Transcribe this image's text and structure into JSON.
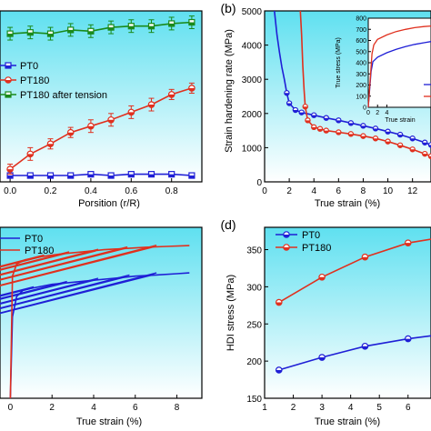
{
  "chart_data": [
    {
      "panel": "a",
      "type": "line",
      "panel_label": "",
      "xlabel": "Porsition (r/R)",
      "ylabel": "",
      "xlim": [
        -0.05,
        0.95
      ],
      "xticks": [
        0.0,
        0.2,
        0.4,
        0.6,
        0.8
      ],
      "xticklabels": [
        "0.0",
        "0.2",
        "0.4",
        "0.6",
        "0.8"
      ],
      "series": [
        {
          "name": "PT0",
          "color": "#1f1fd6",
          "marker": "square-half",
          "x": [
            0.0,
            0.1,
            0.2,
            0.3,
            0.4,
            0.5,
            0.6,
            0.7,
            0.8,
            0.9
          ],
          "y": [
            0.5,
            0.5,
            0.5,
            0.5,
            0.6,
            0.5,
            0.6,
            0.6,
            0.6,
            0.5
          ],
          "err": [
            0.2,
            0.2,
            0.2,
            0.2,
            0.2,
            0.2,
            0.2,
            0.2,
            0.2,
            0.2
          ]
        },
        {
          "name": "PT180",
          "color": "#e0301e",
          "marker": "circle-half",
          "x": [
            0.0,
            0.1,
            0.2,
            0.3,
            0.4,
            0.5,
            0.6,
            0.7,
            0.8,
            0.9
          ],
          "y": [
            1.0,
            2.2,
            3.0,
            3.9,
            4.4,
            4.9,
            5.5,
            6.1,
            6.9,
            7.4
          ],
          "err": [
            0.4,
            0.5,
            0.4,
            0.4,
            0.5,
            0.5,
            0.5,
            0.5,
            0.4,
            0.4
          ]
        },
        {
          "name": "PT180 after tension",
          "color": "#1a8a1a",
          "marker": "square-half",
          "x": [
            0.0,
            0.1,
            0.2,
            0.3,
            0.4,
            0.5,
            0.6,
            0.7,
            0.8,
            0.9
          ],
          "y": [
            11.7,
            11.8,
            11.7,
            12.0,
            11.9,
            12.2,
            12.3,
            12.3,
            12.5,
            12.6
          ],
          "err": [
            0.5,
            0.5,
            0.5,
            0.5,
            0.5,
            0.5,
            0.5,
            0.5,
            0.5,
            0.5
          ]
        }
      ],
      "ylim": [
        0,
        13.5
      ],
      "legend": "left"
    },
    {
      "panel": "b",
      "type": "line",
      "panel_label": "(b)",
      "xlabel": "True strain (%)",
      "ylabel": "Strain hardening rate (MPa)",
      "xlim": [
        0,
        13.5
      ],
      "ylim": [
        0,
        5000
      ],
      "xticks": [
        0,
        2,
        4,
        6,
        8,
        10,
        12
      ],
      "yticks": [
        0,
        1000,
        2000,
        3000,
        4000,
        5000
      ],
      "series": [
        {
          "name": "PT0",
          "color": "#1f1fd6",
          "x": [
            0.8,
            1.0,
            1.2,
            1.4,
            1.6,
            1.8,
            2.0,
            2.5,
            3.0,
            4.0,
            5.0,
            6.0,
            7.0,
            8.0,
            9.0,
            10.0,
            11.0,
            12.0,
            13.0,
            13.5
          ],
          "y": [
            5000,
            4300,
            3800,
            3350,
            3000,
            2600,
            2300,
            2100,
            2030,
            1950,
            1870,
            1800,
            1720,
            1640,
            1560,
            1470,
            1380,
            1270,
            1150,
            1080
          ]
        },
        {
          "name": "PT180",
          "color": "#e0301e",
          "x": [
            2.9,
            3.0,
            3.1,
            3.2,
            3.3,
            3.5,
            4.0,
            4.5,
            5.0,
            6.0,
            7.0,
            8.0,
            9.0,
            10.0,
            11.0,
            12.0,
            13.0,
            13.5
          ],
          "y": [
            5000,
            4300,
            3400,
            2700,
            2200,
            1800,
            1600,
            1550,
            1500,
            1450,
            1400,
            1340,
            1270,
            1180,
            1070,
            950,
            820,
            750
          ]
        }
      ],
      "inset": {
        "ylabel": "True stress (MPa)",
        "xlabel": "True strain",
        "xlim": [
          0,
          13.5
        ],
        "ylim": [
          0,
          800
        ],
        "yticks": [
          0,
          100,
          200,
          300,
          400,
          500,
          600,
          700,
          800
        ],
        "xticks": [
          0,
          2,
          4
        ],
        "series": [
          {
            "name": "PT0",
            "color": "#1f1fd6",
            "x": [
              0,
              0.6,
              1.0,
              2,
              4,
              6,
              8,
              10,
              12,
              13.5
            ],
            "y": [
              0,
              320,
              410,
              450,
              490,
              520,
              545,
              565,
              580,
              590
            ]
          },
          {
            "name": "PT180",
            "color": "#e0301e",
            "x": [
              0,
              0.8,
              1.2,
              2,
              4,
              6,
              8,
              10,
              12,
              13.5
            ],
            "y": [
              0,
              480,
              560,
              610,
              650,
              680,
              700,
              715,
              725,
              730
            ]
          }
        ]
      }
    },
    {
      "panel": "c",
      "type": "line",
      "panel_label": "",
      "xlabel": "True strain (%)",
      "ylabel": "",
      "xlim": [
        -0.5,
        9.2
      ],
      "ylim": [
        0,
        420
      ],
      "xticks": [
        0,
        2,
        4,
        6,
        8
      ],
      "series": [
        {
          "name": "PT0",
          "color": "#1f1fd6",
          "envelope_x": [
            0,
            0.1,
            0.3,
            0.6,
            1.0,
            2.0,
            3.0,
            4.0,
            5.0,
            6.0,
            7.0,
            8.0,
            8.6
          ],
          "envelope_y": [
            0,
            200,
            250,
            265,
            270,
            280,
            285,
            290,
            295,
            300,
            303,
            306,
            308
          ],
          "unload_x": [
            1.0,
            2.6,
            4.1,
            5.6,
            6.9
          ],
          "unload_y": [
            270,
            283,
            291,
            299,
            304
          ],
          "reload_slope": 1300
        },
        {
          "name": "PT180",
          "color": "#e0301e",
          "envelope_x": [
            0,
            0.1,
            0.3,
            0.7,
            1.5,
            2.5,
            3.5,
            4.5,
            5.5,
            6.5,
            7.5,
            8.6
          ],
          "envelope_y": [
            0,
            300,
            330,
            340,
            348,
            355,
            360,
            365,
            368,
            371,
            373,
            375
          ],
          "unload_x": [
            1.5,
            2.7,
            4.1,
            5.5,
            6.9
          ],
          "unload_y": [
            348,
            356,
            362,
            368,
            372
          ],
          "reload_slope": 1300
        }
      ],
      "legend": "top-left"
    },
    {
      "panel": "d",
      "type": "line",
      "panel_label": "(d)",
      "xlabel": "True strain (%)",
      "ylabel": "HDI stress (MPa)",
      "xlim": [
        1,
        6.8
      ],
      "ylim": [
        150,
        380
      ],
      "xticks": [
        1,
        2,
        3,
        4,
        5,
        6
      ],
      "yticks": [
        150,
        200,
        250,
        300,
        350
      ],
      "series": [
        {
          "name": "PT0",
          "color": "#1f1fd6",
          "x": [
            1.5,
            3.0,
            4.5,
            6.0,
            6.8
          ],
          "y": [
            188,
            205,
            220,
            230,
            234
          ]
        },
        {
          "name": "PT180",
          "color": "#e0301e",
          "x": [
            1.5,
            3.0,
            4.5,
            6.0,
            6.8
          ],
          "y": [
            279,
            313,
            340,
            359,
            364
          ]
        }
      ],
      "legend": "top-left"
    }
  ]
}
